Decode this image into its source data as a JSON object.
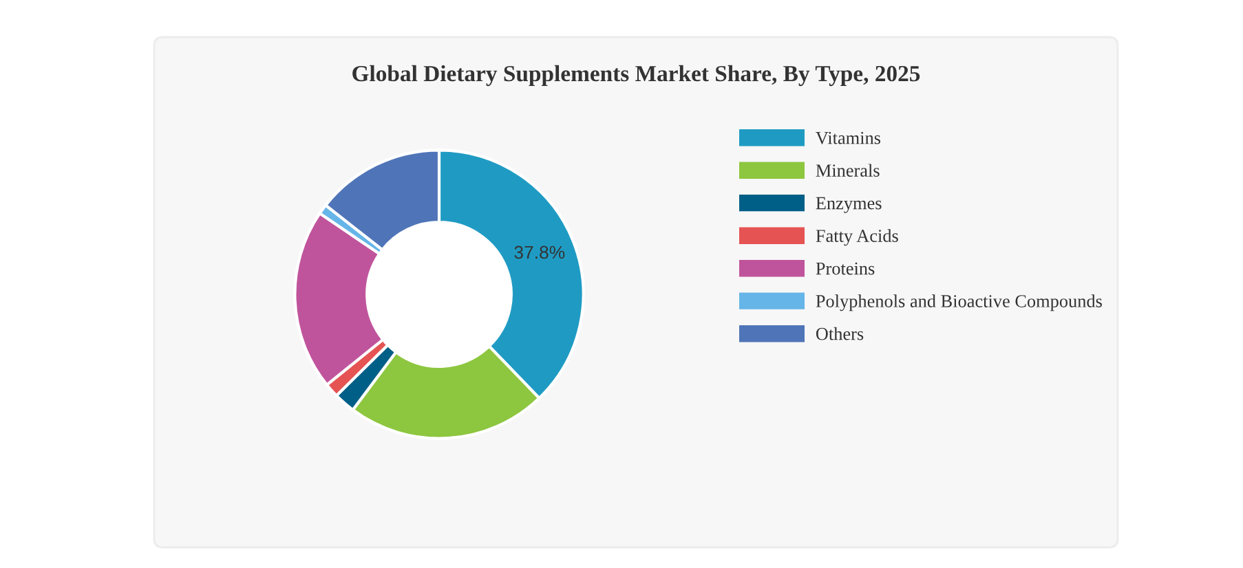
{
  "chart_data": {
    "type": "donut",
    "title": "Global Dietary Supplements Market Share, By Type, 2025",
    "categories": [
      "Vitamins",
      "Minerals",
      "Enzymes",
      "Fatty Acids",
      "Proteins",
      "Polyphenols and Bioactive Compounds",
      "Others"
    ],
    "values": [
      37.8,
      22.4,
      2.4,
      1.6,
      20.3,
      1.1,
      14.4
    ],
    "colors": [
      "#1f9bc3",
      "#8dc63f",
      "#005f87",
      "#e55353",
      "#c0549c",
      "#66b5e8",
      "#4f75b8"
    ],
    "value_labels": [
      "37.8%",
      null,
      null,
      null,
      null,
      null,
      null
    ],
    "legend": "right"
  }
}
